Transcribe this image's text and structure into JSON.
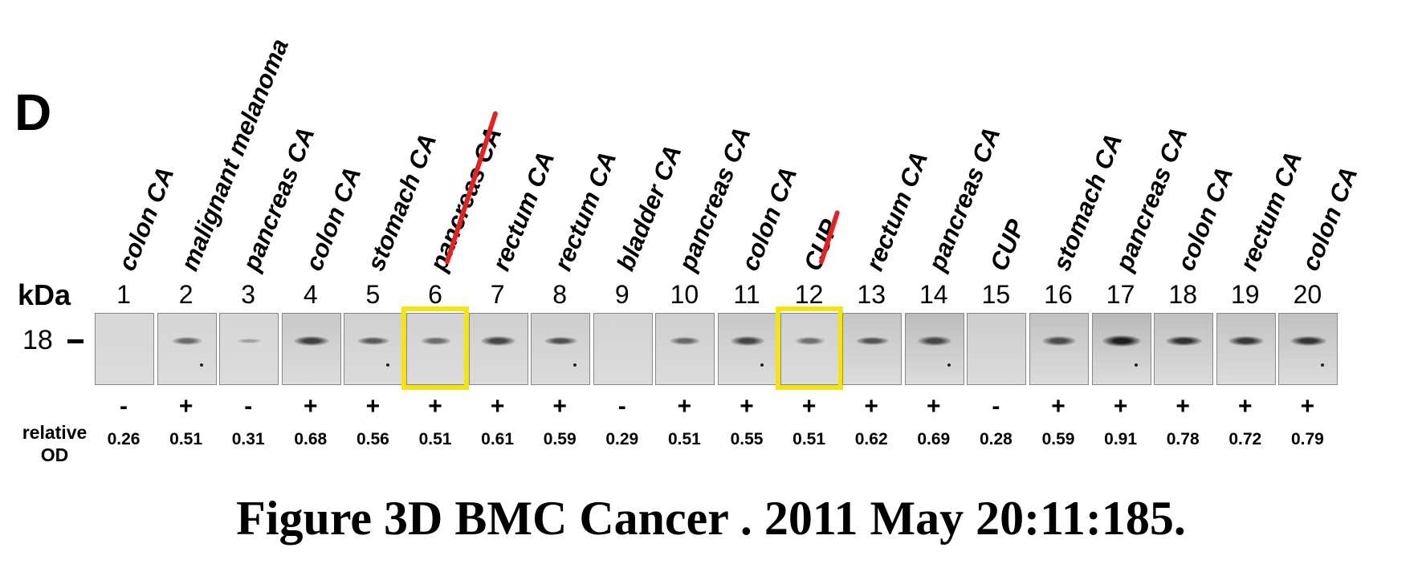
{
  "panel": "D",
  "kda_label": "kDa",
  "marker_label": "18",
  "rel_label_line1": "relative",
  "rel_label_line2": "OD",
  "lanes": [
    {
      "n": "1",
      "tissue": "colon CA",
      "sign": "-",
      "od": "0.26",
      "band": 0.0
    },
    {
      "n": "2",
      "tissue": "malignant melanoma",
      "sign": "+",
      "od": "0.51",
      "band": 0.45
    },
    {
      "n": "3",
      "tissue": "pancreas CA",
      "sign": "-",
      "od": "0.31",
      "band": 0.05
    },
    {
      "n": "4",
      "tissue": "colon CA",
      "sign": "+",
      "od": "0.68",
      "band": 0.75
    },
    {
      "n": "5",
      "tissue": "stomach CA",
      "sign": "+",
      "od": "0.56",
      "band": 0.55
    },
    {
      "n": "6",
      "tissue": "pancreas CA",
      "sign": "+",
      "od": "0.51",
      "band": 0.42
    },
    {
      "n": "7",
      "tissue": "rectum CA",
      "sign": "+",
      "od": "0.61",
      "band": 0.7
    },
    {
      "n": "8",
      "tissue": "rectum CA",
      "sign": "+",
      "od": "0.59",
      "band": 0.62
    },
    {
      "n": "9",
      "tissue": "bladder CA",
      "sign": "-",
      "od": "0.29",
      "band": 0.0
    },
    {
      "n": "10",
      "tissue": "pancreas CA",
      "sign": "+",
      "od": "0.51",
      "band": 0.45
    },
    {
      "n": "11",
      "tissue": "colon CA",
      "sign": "+",
      "od": "0.55",
      "band": 0.7
    },
    {
      "n": "12",
      "tissue": "CUP",
      "sign": "+",
      "od": "0.51",
      "band": 0.4
    },
    {
      "n": "13",
      "tissue": "rectum CA",
      "sign": "+",
      "od": "0.62",
      "band": 0.6
    },
    {
      "n": "14",
      "tissue": "pancreas CA",
      "sign": "+",
      "od": "0.69",
      "band": 0.68
    },
    {
      "n": "15",
      "tissue": "CUP",
      "sign": "-",
      "od": "0.28",
      "band": 0.0
    },
    {
      "n": "16",
      "tissue": "stomach CA",
      "sign": "+",
      "od": "0.59",
      "band": 0.65
    },
    {
      "n": "17",
      "tissue": "pancreas CA",
      "sign": "+",
      "od": "0.91",
      "band": 1.0
    },
    {
      "n": "18",
      "tissue": "colon CA",
      "sign": "+",
      "od": "0.78",
      "band": 0.85
    },
    {
      "n": "19",
      "tissue": "rectum CA",
      "sign": "+",
      "od": "0.72",
      "band": 0.8
    },
    {
      "n": "20",
      "tissue": "colon CA",
      "sign": "+",
      "od": "0.79",
      "band": 0.82
    }
  ],
  "highlight_lanes": [
    "6",
    "12"
  ],
  "struck_lanes": [
    "6",
    "12"
  ],
  "colors": {
    "highlight": "#f5e414",
    "strike": "#e02424"
  },
  "caption": "Figure 3D BMC Cancer . 2011 May 20:11:185."
}
